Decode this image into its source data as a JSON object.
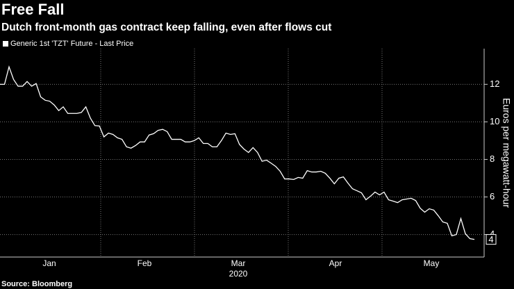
{
  "chart_data": {
    "type": "line",
    "title": "Free Fall",
    "subtitle": "Dutch front-month gas contract keep falling, even after flows cut",
    "source": "Source: Bloomberg",
    "y_axis_label": "Euros per megawatt-hour",
    "x_labels": [
      "Jan",
      "Feb",
      "Mar",
      "Apr",
      "May"
    ],
    "x_year_label": "2020",
    "ylim": [
      2.8,
      13.9
    ],
    "yticks": [
      4,
      6,
      8,
      10,
      12
    ],
    "grid": true,
    "last_price_label": "4",
    "series": [
      {
        "name": "Generic 1st 'TZT' Future - Last Price",
        "color": "#ffffff",
        "values": [
          12.0,
          12.0,
          12.93,
          12.26,
          11.9,
          11.9,
          12.15,
          11.9,
          12.04,
          11.33,
          11.15,
          11.1,
          10.9,
          10.6,
          10.8,
          10.45,
          10.45,
          10.45,
          10.5,
          10.8,
          10.2,
          9.8,
          9.78,
          9.2,
          9.4,
          9.33,
          9.15,
          9.07,
          8.67,
          8.6,
          8.74,
          8.93,
          8.93,
          9.3,
          9.37,
          9.55,
          9.6,
          9.48,
          9.07,
          9.07,
          9.07,
          8.93,
          8.93,
          9.0,
          9.15,
          8.85,
          8.85,
          8.67,
          8.67,
          9.0,
          9.4,
          9.33,
          9.37,
          8.8,
          8.55,
          8.37,
          8.63,
          8.37,
          7.9,
          7.96,
          7.8,
          7.63,
          7.37,
          6.96,
          6.96,
          6.93,
          7.04,
          7.0,
          7.4,
          7.33,
          7.33,
          7.37,
          7.26,
          7.0,
          6.7,
          7.0,
          7.07,
          6.74,
          6.44,
          6.33,
          6.22,
          5.85,
          6.04,
          6.26,
          6.11,
          6.26,
          5.85,
          5.78,
          5.7,
          5.85,
          5.89,
          5.93,
          5.81,
          5.4,
          5.19,
          5.37,
          5.3,
          5.0,
          4.67,
          4.6,
          3.93,
          4.0,
          4.85,
          4.04,
          3.78,
          3.74
        ]
      }
    ]
  }
}
